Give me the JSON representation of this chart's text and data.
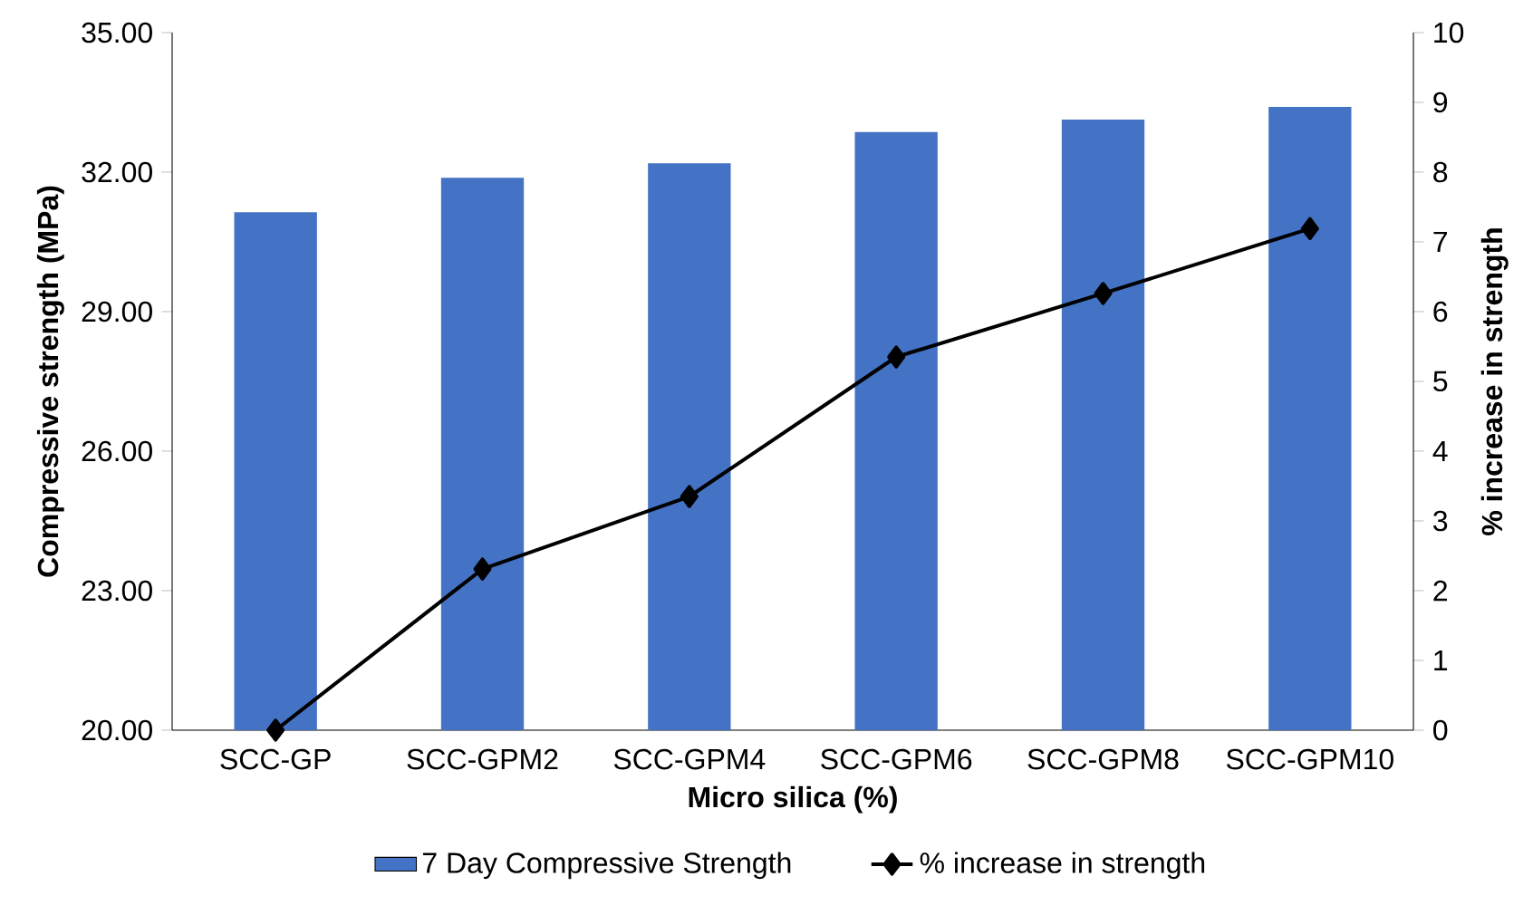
{
  "chart_data": {
    "type": "bar",
    "xlabel": "Micro silica (%)",
    "ylabel": "Compressive strength (MPa)",
    "y2label": "% increase in strength",
    "categories": [
      "SCC-GP",
      "SCC-GPM2",
      "SCC-GPM4",
      "SCC-GPM6",
      "SCC-GPM8",
      "SCC-GPM10"
    ],
    "series": [
      {
        "name": "7 Day Compressive Strength",
        "color": "#4472c4",
        "values": [
          31.14,
          31.88,
          32.19,
          32.86,
          33.13,
          33.4
        ]
      },
      {
        "name": "% increase in strength",
        "type": "line",
        "axis": "y2",
        "color": "#000000",
        "values": [
          0,
          2.31,
          3.35,
          5.35,
          6.26,
          7.19
        ]
      }
    ],
    "ylim": [
      20,
      35
    ],
    "yticks": [
      {
        "value": 20,
        "label": "20.00"
      },
      {
        "value": 23,
        "label": "23.00"
      },
      {
        "value": 26,
        "label": "26.00"
      },
      {
        "value": 29,
        "label": "29.00"
      },
      {
        "value": 32,
        "label": "32.00"
      },
      {
        "value": 35,
        "label": "35.00"
      }
    ],
    "y2lim": [
      0,
      10
    ],
    "y2ticks": [
      0,
      1,
      2,
      3,
      4,
      5,
      6,
      7,
      8,
      9,
      10
    ],
    "legend": "bottom",
    "marker": "diamond",
    "line_style": "solid"
  }
}
